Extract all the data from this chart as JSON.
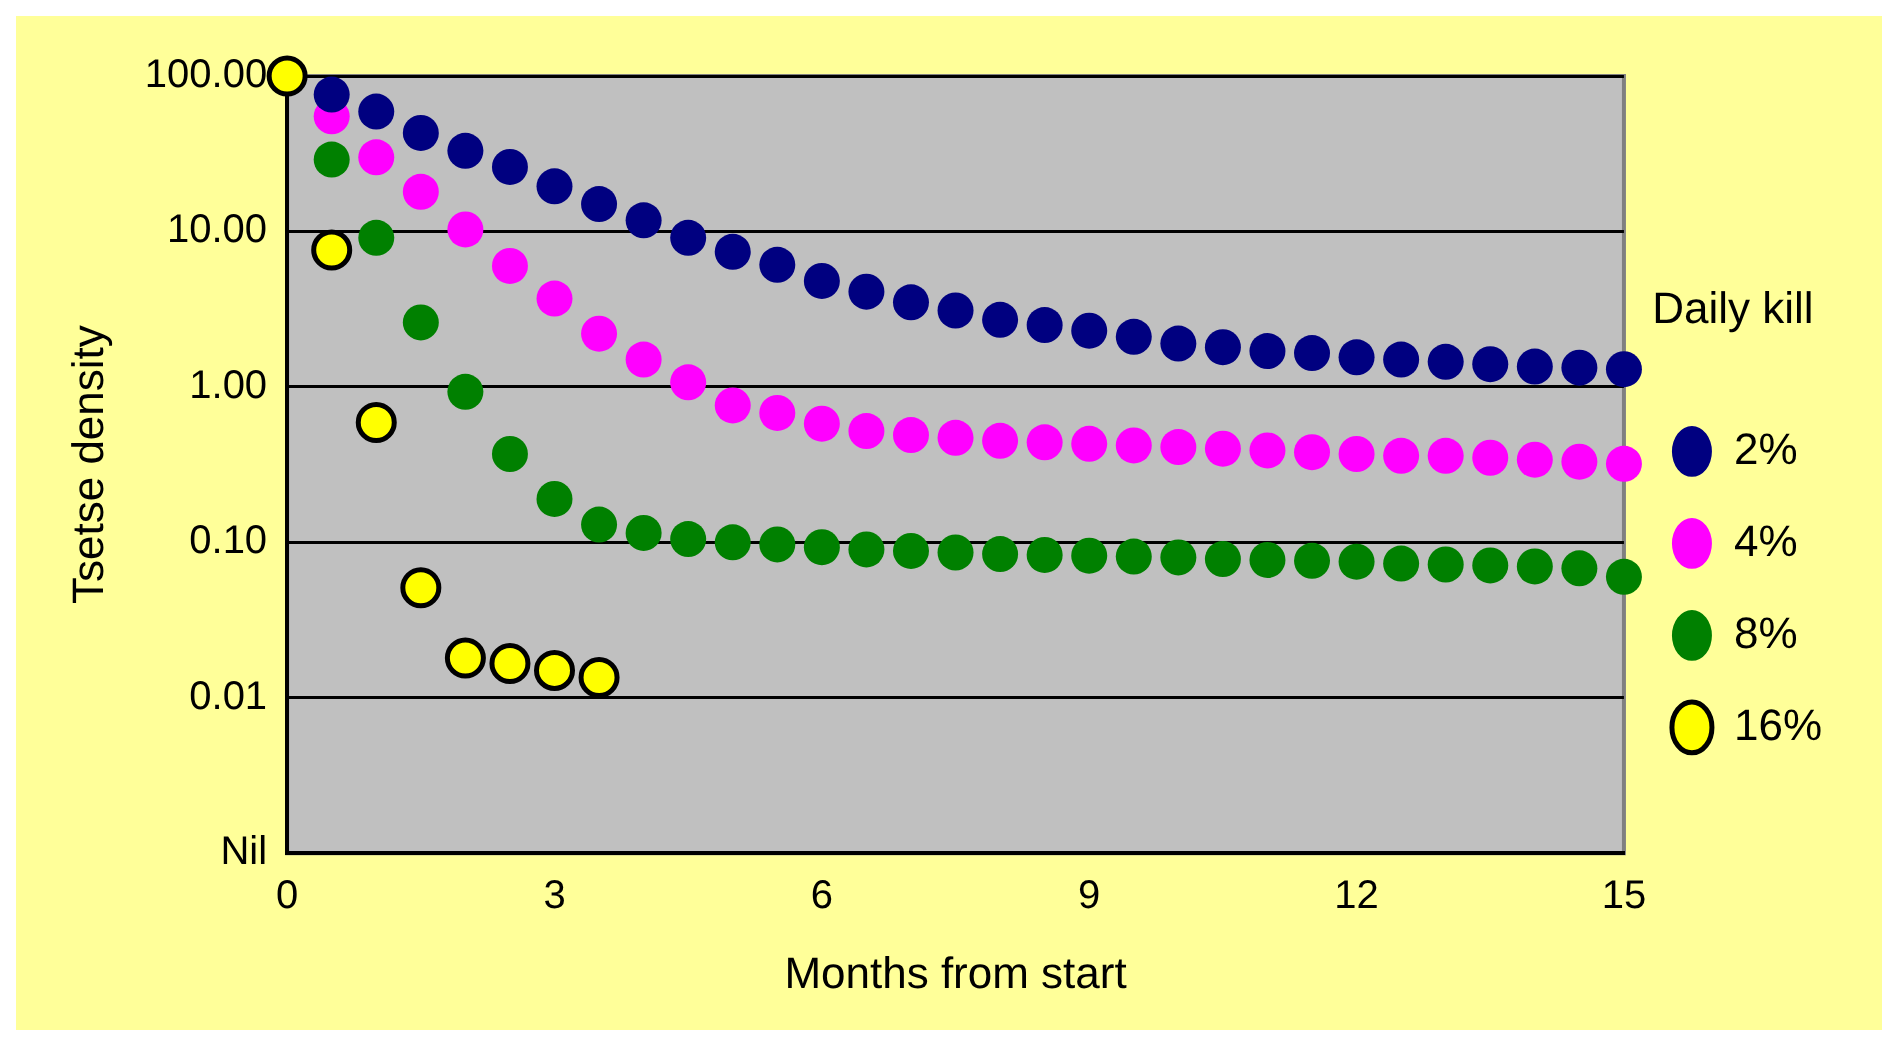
{
  "chart_data": {
    "type": "scatter",
    "xlabel": "Months from start",
    "ylabel": "Tsetse density",
    "legend_title": "Daily kill",
    "log": "y",
    "grid": "y",
    "legend": "right",
    "marker": "circle",
    "xlim": [
      0,
      15
    ],
    "xticks": [
      0,
      3,
      6,
      9,
      12,
      15
    ],
    "ylim": [
      0.001,
      100
    ],
    "yticks": [
      {
        "value": 0.001,
        "label": "Nil"
      },
      0.01,
      {
        "value": 0.1,
        "label": "0.10"
      },
      {
        "value": 1,
        "label": "1.00"
      },
      {
        "value": 10,
        "label": "10.00"
      },
      {
        "value": 100,
        "label": "100.00"
      }
    ],
    "series": [
      {
        "name": "2%",
        "color": "#000080",
        "x": [
          0.5,
          1,
          1.5,
          2,
          2.5,
          3,
          3.5,
          4,
          4.5,
          5,
          5.5,
          6,
          6.5,
          7,
          7.5,
          8,
          8.5,
          9,
          9.5,
          10,
          10.5,
          11,
          11.5,
          12,
          12.5,
          13,
          13.5,
          14,
          14.5,
          15
        ],
        "values": [
          76,
          59,
          43,
          33,
          26,
          19.5,
          15,
          11.8,
          9.1,
          7.4,
          6.1,
          4.8,
          4.1,
          3.5,
          3.1,
          2.7,
          2.5,
          2.3,
          2.1,
          1.9,
          1.8,
          1.7,
          1.65,
          1.55,
          1.5,
          1.45,
          1.4,
          1.35,
          1.33,
          1.3
        ]
      },
      {
        "name": "4%",
        "color": "#ff00ff",
        "x": [
          0.5,
          1,
          1.5,
          2,
          2.5,
          3,
          3.5,
          4,
          4.5,
          5,
          5.5,
          6,
          6.5,
          7,
          7.5,
          8,
          8.5,
          9,
          9.5,
          10,
          10.5,
          11,
          11.5,
          12,
          12.5,
          13,
          13.5,
          14,
          14.5,
          15
        ],
        "values": [
          55,
          30,
          18,
          10.3,
          6,
          3.7,
          2.2,
          1.5,
          1.07,
          0.76,
          0.68,
          0.58,
          0.52,
          0.49,
          0.47,
          0.45,
          0.44,
          0.43,
          0.42,
          0.41,
          0.4,
          0.39,
          0.38,
          0.37,
          0.36,
          0.36,
          0.35,
          0.34,
          0.33,
          0.32
        ]
      },
      {
        "name": "8%",
        "color": "#008000",
        "x": [
          0.5,
          1,
          1.5,
          2,
          2.5,
          3,
          3.5,
          4,
          4.5,
          5,
          5.5,
          6,
          6.5,
          7,
          7.5,
          8,
          8.5,
          9,
          9.5,
          10,
          10.5,
          11,
          11.5,
          12,
          12.5,
          13,
          13.5,
          14,
          14.5,
          15
        ],
        "values": [
          29,
          9.1,
          2.6,
          0.93,
          0.37,
          0.19,
          0.13,
          0.115,
          0.105,
          0.1,
          0.097,
          0.093,
          0.09,
          0.088,
          0.086,
          0.084,
          0.083,
          0.082,
          0.081,
          0.08,
          0.078,
          0.077,
          0.076,
          0.075,
          0.073,
          0.072,
          0.071,
          0.07,
          0.068,
          0.06
        ]
      },
      {
        "name": "16%",
        "color": "#ffff00",
        "x": [
          0,
          0.5,
          1,
          1.5,
          2,
          2.5,
          3,
          3.5
        ],
        "values": [
          100,
          7.6,
          0.59,
          0.051,
          0.018,
          0.0166,
          0.015,
          0.0135
        ]
      }
    ]
  }
}
